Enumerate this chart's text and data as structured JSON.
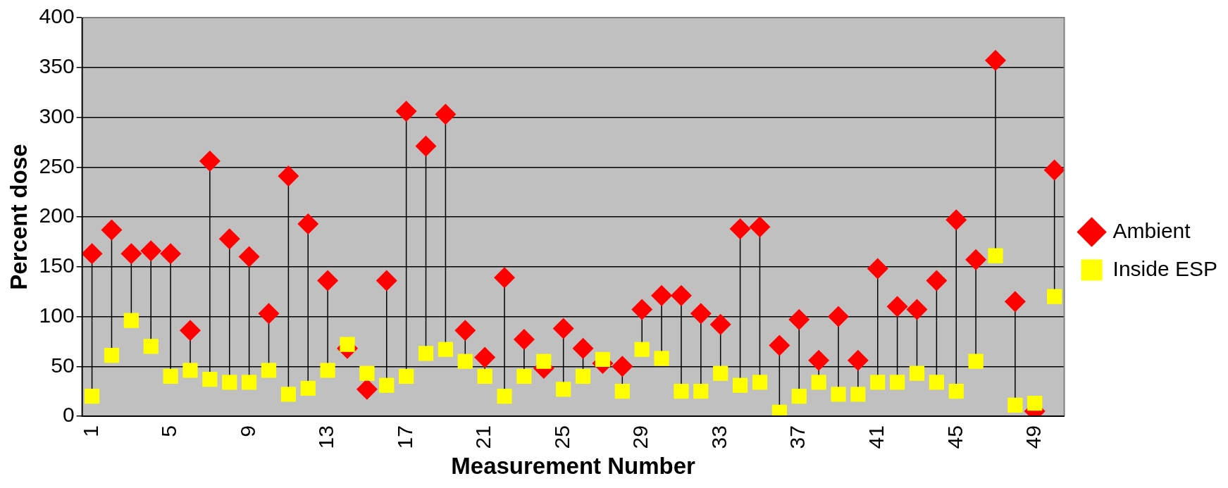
{
  "chart_data": {
    "type": "scatter",
    "xlabel": "Measurement Number",
    "ylabel": "Percent dose",
    "categories": [
      "1",
      null,
      null,
      null,
      "5",
      null,
      null,
      null,
      "9",
      null,
      null,
      null,
      "13",
      null,
      null,
      null,
      "17",
      null,
      null,
      null,
      "21",
      null,
      null,
      null,
      "25",
      null,
      null,
      null,
      "29",
      null,
      null,
      null,
      "33",
      null,
      null,
      null,
      "37",
      null,
      null,
      null,
      "41",
      null,
      null,
      null,
      "45",
      null,
      null,
      null,
      "49",
      null
    ],
    "series": [
      {
        "name": "Ambient",
        "color": "#ff0000",
        "marker": "diamond",
        "values": [
          163,
          187,
          163,
          166,
          163,
          86,
          256,
          178,
          160,
          103,
          241,
          193,
          136,
          68,
          27,
          136,
          306,
          271,
          303,
          86,
          59,
          139,
          77,
          48,
          88,
          68,
          53,
          50,
          107,
          121,
          121,
          103,
          92,
          188,
          190,
          71,
          97,
          56,
          100,
          56,
          148,
          110,
          107,
          136,
          197,
          157,
          357,
          115,
          5,
          247
        ]
      },
      {
        "name": "Inside ESP",
        "color": "#ffff00",
        "marker": "square",
        "values": [
          20,
          61,
          96,
          70,
          40,
          46,
          37,
          34,
          34,
          46,
          22,
          28,
          46,
          72,
          43,
          31,
          40,
          63,
          67,
          55,
          40,
          20,
          40,
          55,
          27,
          40,
          57,
          25,
          67,
          58,
          25,
          25,
          43,
          31,
          34,
          4,
          20,
          34,
          22,
          22,
          34,
          34,
          43,
          34,
          25,
          55,
          161,
          11,
          13,
          120
        ]
      }
    ],
    "ylim": [
      0,
      400
    ],
    "yticks": [
      0,
      50,
      100,
      150,
      200,
      250,
      300,
      350,
      400
    ],
    "grid": "y",
    "legend": "right"
  }
}
